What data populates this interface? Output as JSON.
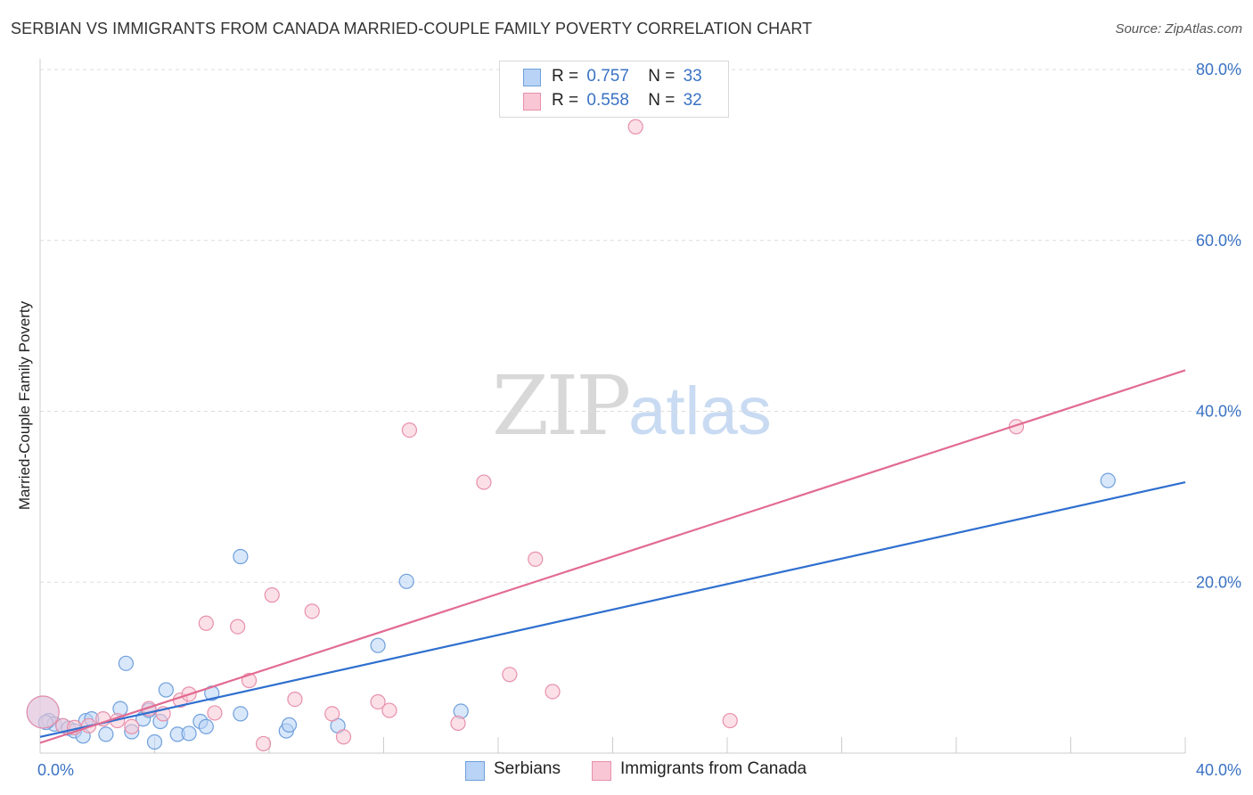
{
  "title": "SERBIAN VS IMMIGRANTS FROM CANADA MARRIED-COUPLE FAMILY POVERTY CORRELATION CHART",
  "source": "Source: ZipAtlas.com",
  "watermark": {
    "zip": "ZIP",
    "atlas": "atlas"
  },
  "legend_top": {
    "r_label": "R =",
    "n_label": "N =",
    "rows": [
      {
        "r": "0.757",
        "n": "33"
      },
      {
        "r": "0.558",
        "n": "32"
      }
    ]
  },
  "colors": {
    "blue_fill": "#b8d3f5",
    "blue_stroke": "#6f9fdc",
    "blue_line": "#2f6fcf",
    "pink_fill": "#f8c6d4",
    "pink_stroke": "#e890ac",
    "pink_line": "#e26b92",
    "tick_text": "#3a72c4",
    "grid": "#dddddd"
  },
  "chart_data": {
    "type": "scatter",
    "title": "SERBIAN VS IMMIGRANTS FROM CANADA MARRIED-COUPLE FAMILY POVERTY CORRELATION CHART",
    "xlabel": "",
    "ylabel": "Married-Couple Family Poverty",
    "xlim": [
      0,
      40
    ],
    "ylim": [
      0,
      80
    ],
    "x_tick_labels": [
      {
        "value": 0,
        "label": "0.0%"
      },
      {
        "value": 40,
        "label": "40.0%"
      }
    ],
    "y_tick_labels": [
      {
        "value": 20,
        "label": "20.0%"
      },
      {
        "value": 40,
        "label": "40.0%"
      },
      {
        "value": 60,
        "label": "60.0%"
      },
      {
        "value": 80,
        "label": "80.0%"
      }
    ],
    "grid": true,
    "legend_position": "bottom-center",
    "series": [
      {
        "name": "Serbians",
        "color": "blue",
        "trend": {
          "x0": 0,
          "y0": 1.9,
          "x1": 40,
          "y1": 31.7
        },
        "points": [
          [
            0.1,
            4.8
          ],
          [
            0.3,
            3.8
          ],
          [
            0.5,
            3.4
          ],
          [
            0.8,
            3.2
          ],
          [
            1.0,
            2.9
          ],
          [
            1.2,
            2.6
          ],
          [
            1.5,
            2.0
          ],
          [
            1.6,
            3.8
          ],
          [
            1.8,
            4.0
          ],
          [
            2.3,
            2.2
          ],
          [
            2.8,
            5.2
          ],
          [
            3.0,
            10.5
          ],
          [
            3.2,
            2.5
          ],
          [
            3.6,
            4.0
          ],
          [
            3.8,
            5.0
          ],
          [
            4.0,
            1.3
          ],
          [
            4.2,
            3.7
          ],
          [
            4.4,
            7.4
          ],
          [
            4.8,
            2.2
          ],
          [
            5.2,
            2.3
          ],
          [
            5.6,
            3.7
          ],
          [
            5.8,
            3.1
          ],
          [
            6.0,
            7.0
          ],
          [
            7.0,
            4.6
          ],
          [
            7.0,
            23.0
          ],
          [
            8.6,
            2.6
          ],
          [
            8.7,
            3.3
          ],
          [
            10.4,
            3.2
          ],
          [
            11.8,
            12.6
          ],
          [
            12.8,
            20.1
          ],
          [
            14.7,
            4.9
          ],
          [
            37.3,
            31.9
          ],
          [
            0.2,
            3.6
          ]
        ]
      },
      {
        "name": "Immigrants from Canada",
        "color": "pink",
        "trend": {
          "x0": 0,
          "y0": 1.2,
          "x1": 40,
          "y1": 44.8
        },
        "points": [
          [
            0.1,
            4.8
          ],
          [
            0.8,
            3.2
          ],
          [
            1.2,
            3.0
          ],
          [
            1.7,
            3.2
          ],
          [
            2.2,
            4.0
          ],
          [
            2.7,
            3.8
          ],
          [
            3.2,
            3.1
          ],
          [
            3.8,
            5.2
          ],
          [
            4.3,
            4.6
          ],
          [
            4.9,
            6.2
          ],
          [
            5.2,
            6.9
          ],
          [
            5.8,
            15.2
          ],
          [
            6.1,
            4.7
          ],
          [
            6.9,
            14.8
          ],
          [
            7.3,
            8.5
          ],
          [
            7.8,
            1.1
          ],
          [
            8.1,
            18.5
          ],
          [
            8.9,
            6.3
          ],
          [
            9.5,
            16.6
          ],
          [
            10.2,
            4.6
          ],
          [
            10.6,
            1.9
          ],
          [
            11.8,
            6.0
          ],
          [
            12.2,
            5.0
          ],
          [
            12.9,
            37.8
          ],
          [
            14.6,
            3.5
          ],
          [
            15.5,
            31.7
          ],
          [
            16.4,
            9.2
          ],
          [
            17.3,
            22.7
          ],
          [
            17.9,
            7.2
          ],
          [
            20.8,
            73.3
          ],
          [
            24.1,
            3.8
          ],
          [
            34.1,
            38.2
          ]
        ]
      }
    ]
  }
}
